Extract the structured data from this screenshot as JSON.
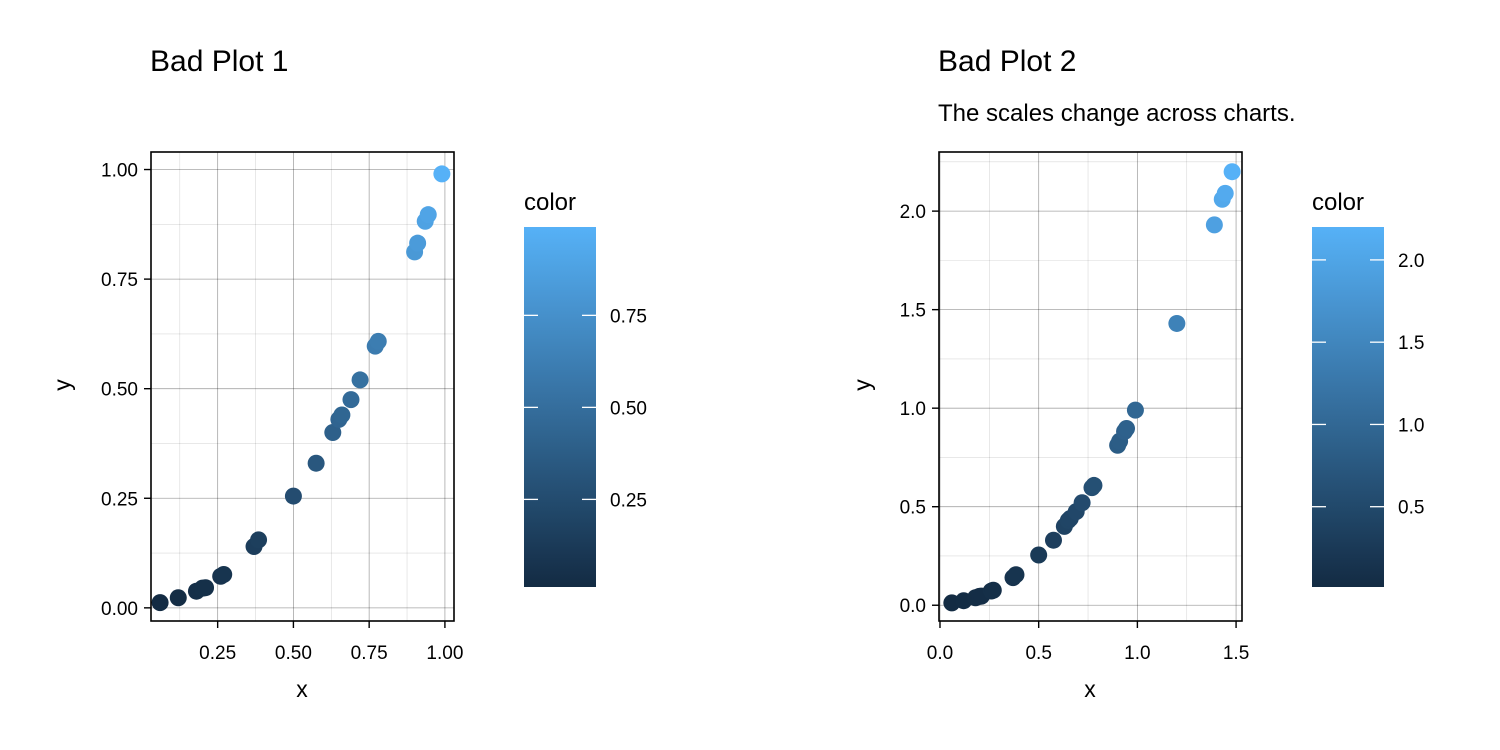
{
  "chart_data": [
    {
      "type": "scatter",
      "title": "Bad Plot 1",
      "subtitle": "",
      "xlabel": "x",
      "ylabel": "y",
      "xlim": [
        0.03,
        1.03
      ],
      "ylim": [
        -0.03,
        1.04
      ],
      "x_ticks": [
        0.25,
        0.5,
        0.75,
        1.0
      ],
      "x_tick_labels": [
        "0.25",
        "0.50",
        "0.75",
        "1.00"
      ],
      "y_ticks": [
        0.0,
        0.25,
        0.5,
        0.75,
        1.0
      ],
      "y_tick_labels": [
        "0.00",
        "0.25",
        "0.50",
        "0.75",
        "1.00"
      ],
      "grid": true,
      "legend": {
        "title": "color",
        "placement": "right",
        "min": 0.012,
        "max": 0.99,
        "ticks": [
          0.25,
          0.5,
          0.75
        ],
        "tick_labels": [
          "0.25",
          "0.50",
          "0.75"
        ],
        "low_color": "#132B43",
        "high_color": "#56B1F7"
      },
      "points": [
        {
          "x": 0.06,
          "y": 0.012
        },
        {
          "x": 0.12,
          "y": 0.023
        },
        {
          "x": 0.18,
          "y": 0.038
        },
        {
          "x": 0.2,
          "y": 0.045
        },
        {
          "x": 0.21,
          "y": 0.046
        },
        {
          "x": 0.26,
          "y": 0.072
        },
        {
          "x": 0.27,
          "y": 0.076
        },
        {
          "x": 0.37,
          "y": 0.14
        },
        {
          "x": 0.385,
          "y": 0.155
        },
        {
          "x": 0.5,
          "y": 0.255
        },
        {
          "x": 0.575,
          "y": 0.33
        },
        {
          "x": 0.63,
          "y": 0.4
        },
        {
          "x": 0.65,
          "y": 0.43
        },
        {
          "x": 0.66,
          "y": 0.44
        },
        {
          "x": 0.69,
          "y": 0.475
        },
        {
          "x": 0.72,
          "y": 0.52
        },
        {
          "x": 0.77,
          "y": 0.597
        },
        {
          "x": 0.78,
          "y": 0.608
        },
        {
          "x": 0.9,
          "y": 0.812
        },
        {
          "x": 0.91,
          "y": 0.832
        },
        {
          "x": 0.935,
          "y": 0.882
        },
        {
          "x": 0.945,
          "y": 0.897
        },
        {
          "x": 0.99,
          "y": 0.99
        }
      ]
    },
    {
      "type": "scatter",
      "title": "Bad Plot 2",
      "subtitle": "The scales change across charts.",
      "xlabel": "x",
      "ylabel": "y",
      "xlim": [
        -0.005,
        1.53
      ],
      "ylim": [
        -0.08,
        2.3
      ],
      "x_ticks": [
        0.0,
        0.5,
        1.0,
        1.5
      ],
      "x_tick_labels": [
        "0.0",
        "0.5",
        "1.0",
        "1.5"
      ],
      "y_ticks": [
        0.0,
        0.5,
        1.0,
        1.5,
        2.0
      ],
      "y_tick_labels": [
        "0.0",
        "0.5",
        "1.0",
        "1.5",
        "2.0"
      ],
      "grid": true,
      "legend": {
        "title": "color",
        "placement": "right",
        "min": 0.012,
        "max": 2.2,
        "ticks": [
          0.5,
          1.0,
          1.5,
          2.0
        ],
        "tick_labels": [
          "0.5",
          "1.0",
          "1.5",
          "2.0"
        ],
        "low_color": "#132B43",
        "high_color": "#56B1F7"
      },
      "points": [
        {
          "x": 0.06,
          "y": 0.012
        },
        {
          "x": 0.12,
          "y": 0.023
        },
        {
          "x": 0.18,
          "y": 0.038
        },
        {
          "x": 0.2,
          "y": 0.045
        },
        {
          "x": 0.21,
          "y": 0.046
        },
        {
          "x": 0.26,
          "y": 0.072
        },
        {
          "x": 0.27,
          "y": 0.076
        },
        {
          "x": 0.37,
          "y": 0.14
        },
        {
          "x": 0.385,
          "y": 0.155
        },
        {
          "x": 0.5,
          "y": 0.255
        },
        {
          "x": 0.575,
          "y": 0.33
        },
        {
          "x": 0.63,
          "y": 0.4
        },
        {
          "x": 0.65,
          "y": 0.43
        },
        {
          "x": 0.66,
          "y": 0.44
        },
        {
          "x": 0.69,
          "y": 0.475
        },
        {
          "x": 0.72,
          "y": 0.52
        },
        {
          "x": 0.77,
          "y": 0.597
        },
        {
          "x": 0.78,
          "y": 0.608
        },
        {
          "x": 0.9,
          "y": 0.812
        },
        {
          "x": 0.91,
          "y": 0.832
        },
        {
          "x": 0.935,
          "y": 0.882
        },
        {
          "x": 0.945,
          "y": 0.897
        },
        {
          "x": 0.99,
          "y": 0.99
        },
        {
          "x": 1.2,
          "y": 1.43
        },
        {
          "x": 1.39,
          "y": 1.93
        },
        {
          "x": 1.43,
          "y": 2.06
        },
        {
          "x": 1.445,
          "y": 2.09
        },
        {
          "x": 1.48,
          "y": 2.2
        }
      ]
    }
  ]
}
